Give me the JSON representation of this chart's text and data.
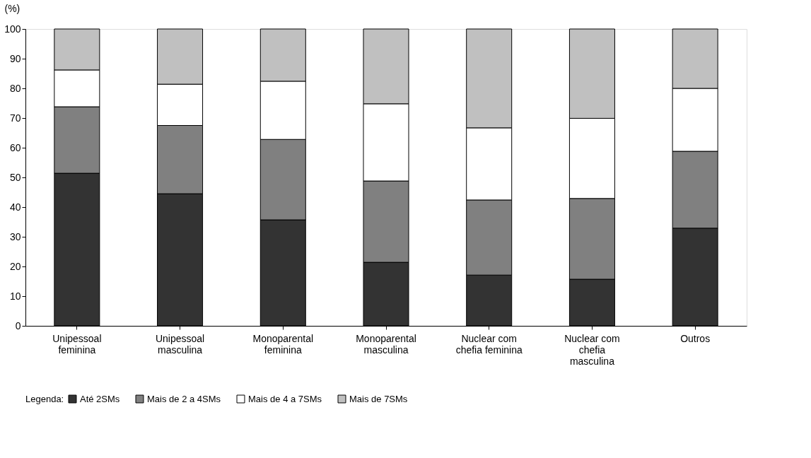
{
  "chart_data": {
    "type": "bar",
    "stacked": true,
    "ylabel": "(%)",
    "legend_title": "Legenda:",
    "legend": "bottom",
    "grid": false,
    "categories": [
      "Unipessoal feminina",
      "Unipessoal masculina",
      "Monoparental feminina",
      "Monoparental masculina",
      "Nuclear com chefia feminina",
      "Nuclear com chefia masculina",
      "Outros"
    ],
    "series": [
      {
        "name": "Até 2SMs",
        "color": "#333333",
        "values": [
          51.4,
          44.5,
          35.7,
          21.4,
          17.1,
          15.7,
          32.9
        ]
      },
      {
        "name": "Mais de 2 a 4SMs",
        "color": "#808080",
        "values": [
          22.4,
          23.0,
          27.1,
          27.4,
          25.3,
          27.2,
          25.9
        ]
      },
      {
        "name": "Mais de 4 a 7SMs",
        "color": "#ffffff",
        "values": [
          12.4,
          13.9,
          19.6,
          26.0,
          24.3,
          27.0,
          21.2
        ]
      },
      {
        "name": "Mais de 7SMs",
        "color": "#c0c0c0",
        "values": [
          13.8,
          18.6,
          17.6,
          25.2,
          33.3,
          30.1,
          20.0
        ]
      }
    ],
    "ylim": [
      0,
      100
    ],
    "yticks": [
      0,
      10,
      20,
      30,
      40,
      50,
      60,
      70,
      80,
      90,
      100
    ]
  }
}
